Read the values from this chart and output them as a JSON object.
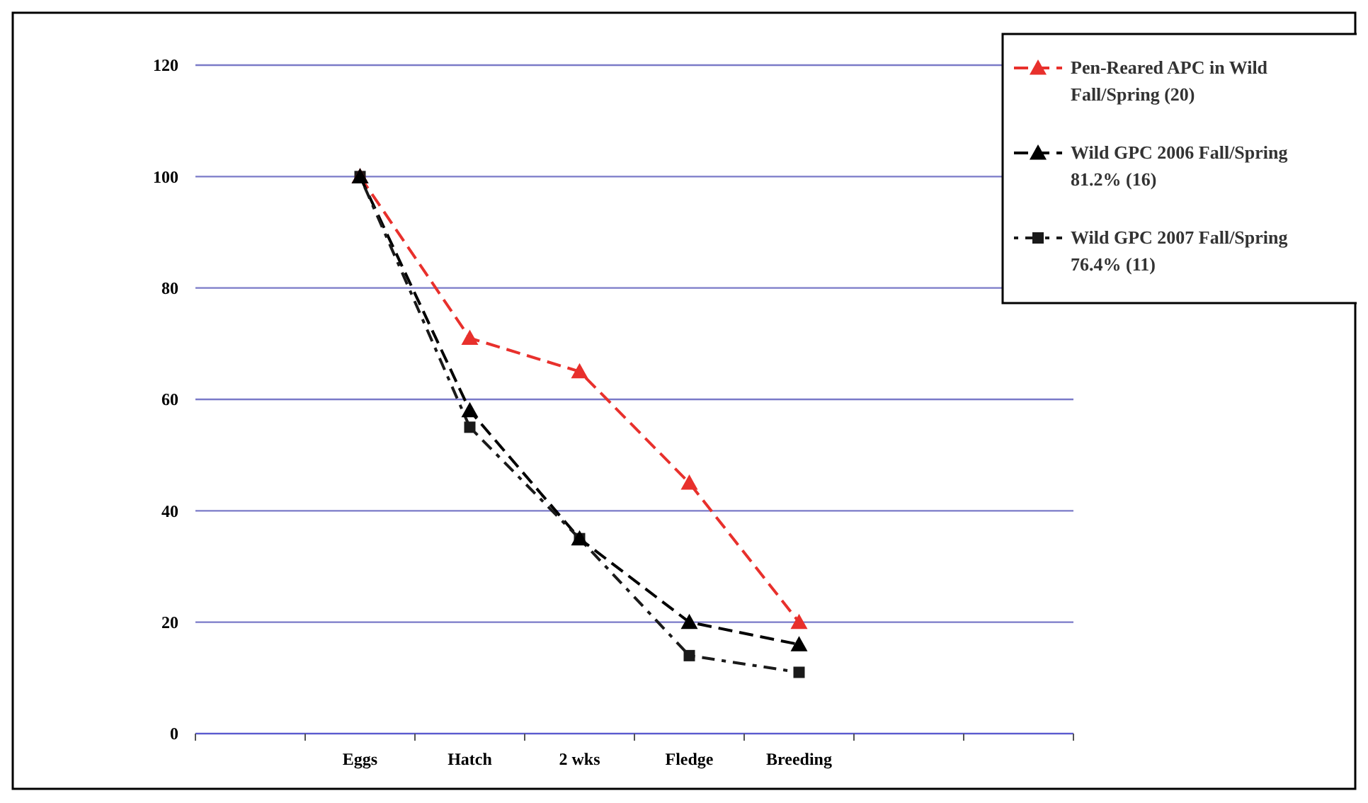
{
  "chart_data": {
    "type": "line",
    "categories": [
      null,
      "Eggs",
      "Hatch",
      "2 wks",
      "Fledge",
      "Breeding",
      null,
      null
    ],
    "series": [
      {
        "name": "Pen-Reared APC in Wild Fall/Spring (20)",
        "color": "#e8302c",
        "values": [
          null,
          100,
          71,
          65,
          45,
          20,
          null,
          null
        ],
        "marker": "triangle",
        "line_style": "dashed"
      },
      {
        "name": "Wild GPC 2006 Fall/Spring 81.2% (16)",
        "color": "#000000",
        "values": [
          null,
          100,
          58,
          35,
          20,
          16,
          null,
          null
        ],
        "marker": "triangle",
        "line_style": "dashed"
      },
      {
        "name": "Wild GPC 2007 Fall/Spring 76.4% (11)",
        "color": "#1a1a1a",
        "values": [
          null,
          100,
          55,
          35,
          14,
          11,
          null,
          null
        ],
        "marker": "square",
        "line_style": "dotted"
      }
    ],
    "ylim": [
      0,
      120
    ],
    "yticks": [
      0,
      20,
      40,
      60,
      80,
      100,
      120
    ],
    "grid": "y",
    "legend": "top right"
  }
}
